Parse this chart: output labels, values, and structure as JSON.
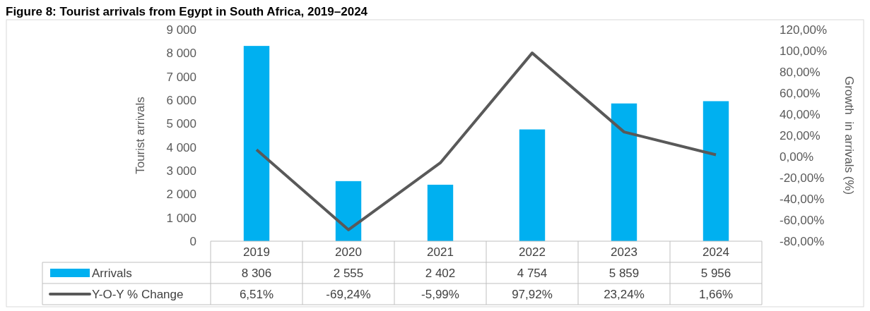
{
  "chart_data": {
    "type": "bar",
    "title": "Figure 8: Tourist arrivals from Egypt in South Africa, 2019–2024",
    "ylabel": "Tourist arrivals",
    "y2label": "Growth  in arrivals (%)",
    "categories": [
      "2019",
      "2020",
      "2021",
      "2022",
      "2023",
      "2024"
    ],
    "series": [
      {
        "name": "Arrivals",
        "color": "#00b0f0",
        "values": [
          8306,
          2555,
          2402,
          4754,
          5859,
          5956
        ],
        "value_labels": [
          "8 306",
          "2 555",
          "2 402",
          "4 754",
          "5 859",
          "5 956"
        ]
      },
      {
        "name": "Y-O-Y % Change",
        "type": "line",
        "axis": "y2",
        "color": "#595959",
        "values": [
          6.51,
          -69.24,
          -5.99,
          97.92,
          23.24,
          1.66
        ],
        "value_labels": [
          "6,51%",
          "-69,24%",
          "-5,99%",
          "97,92%",
          "23,24%",
          "1,66%"
        ],
        "marker": "none",
        "line_style": "solid"
      }
    ],
    "ylim": [
      0,
      9000
    ],
    "yticks": [
      0,
      {
        "value": 1000,
        "label": "1 000"
      },
      {
        "value": 2000,
        "label": "2 000"
      },
      {
        "value": 3000,
        "label": "3 000"
      },
      {
        "value": 4000,
        "label": "4 000"
      },
      {
        "value": 5000,
        "label": "5 000"
      },
      {
        "value": 6000,
        "label": "6 000"
      },
      {
        "value": 7000,
        "label": "7 000"
      },
      {
        "value": 8000,
        "label": "8 000"
      },
      {
        "value": 9000,
        "label": "9 000"
      }
    ],
    "y2lim": [
      -80,
      120
    ],
    "y2ticks": [
      {
        "value": -80,
        "label": "-80,00%"
      },
      {
        "value": -60,
        "label": "-60,00%"
      },
      {
        "value": -40,
        "label": "-40,00%"
      },
      {
        "value": -20,
        "label": "-20,00%"
      },
      {
        "value": 0,
        "label": "0,00%"
      },
      {
        "value": 20,
        "label": "20,00%"
      },
      {
        "value": 40,
        "label": "40,00%"
      },
      {
        "value": 60,
        "label": "60,00%"
      },
      {
        "value": 80,
        "label": "80,00%"
      },
      {
        "value": 100,
        "label": "100,00%"
      },
      {
        "value": 120,
        "label": "120,00%"
      }
    ],
    "grid": false,
    "legend": "bottom"
  }
}
